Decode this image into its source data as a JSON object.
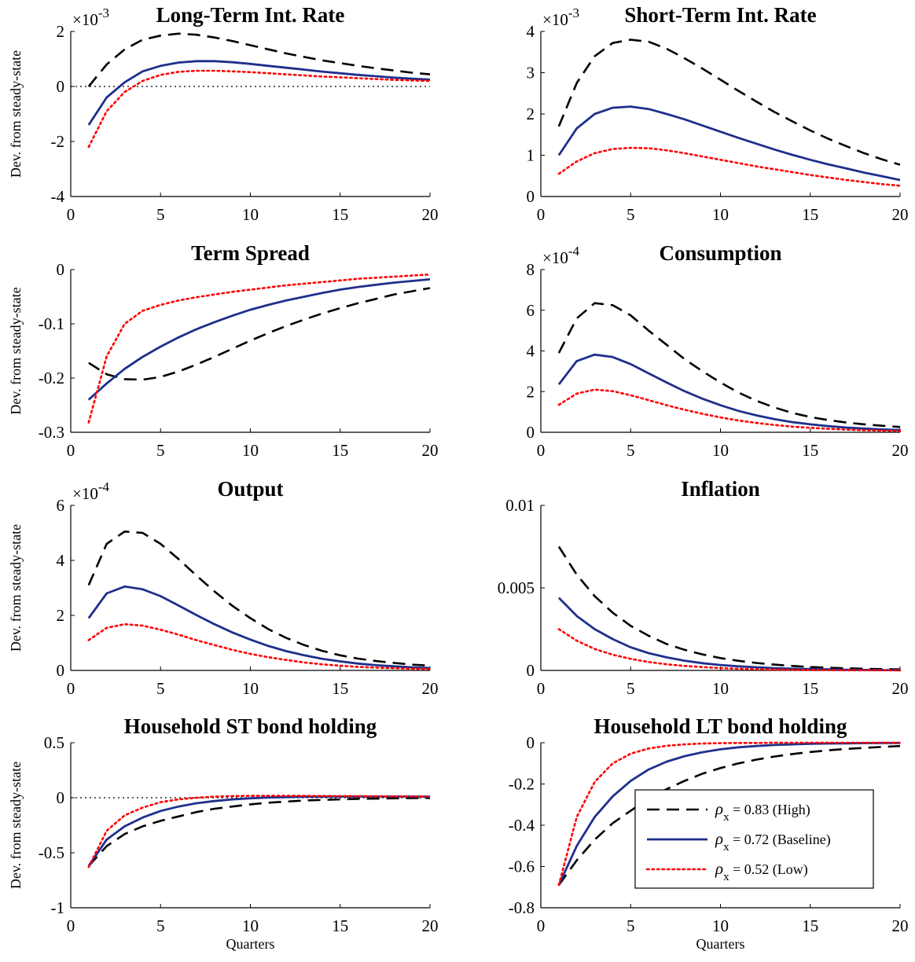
{
  "chart_data": [
    {
      "type": "line",
      "title": "Long-Term Int. Rate",
      "ylabel": "Dev. from steady-state",
      "xlabel": "",
      "multiplier": "×10",
      "exponent": "-3",
      "xlim": [
        0,
        20
      ],
      "ylim": [
        -4,
        2
      ],
      "xticks": [
        0,
        5,
        10,
        15,
        20
      ],
      "yticks": [
        -4,
        -2,
        0,
        2
      ],
      "ytick_labels": [
        "-4",
        "-2",
        "0",
        "2"
      ],
      "zero_line": true,
      "x": [
        1,
        2,
        3,
        4,
        5,
        6,
        7,
        8,
        9,
        10,
        11,
        12,
        13,
        14,
        15,
        16,
        17,
        18,
        19,
        20
      ],
      "series": [
        {
          "style": "high",
          "values": [
            0.0,
            0.8,
            1.35,
            1.7,
            1.85,
            1.92,
            1.88,
            1.78,
            1.65,
            1.5,
            1.35,
            1.2,
            1.07,
            0.95,
            0.85,
            0.75,
            0.66,
            0.58,
            0.5,
            0.44
          ]
        },
        {
          "style": "baseline",
          "values": [
            -1.4,
            -0.4,
            0.15,
            0.55,
            0.75,
            0.87,
            0.92,
            0.92,
            0.88,
            0.82,
            0.75,
            0.68,
            0.61,
            0.54,
            0.48,
            0.42,
            0.37,
            0.32,
            0.28,
            0.25
          ]
        },
        {
          "style": "low",
          "values": [
            -2.2,
            -0.9,
            -0.2,
            0.2,
            0.42,
            0.53,
            0.57,
            0.57,
            0.55,
            0.52,
            0.48,
            0.44,
            0.4,
            0.36,
            0.33,
            0.3,
            0.27,
            0.24,
            0.22,
            0.2
          ]
        }
      ]
    },
    {
      "type": "line",
      "title": "Short-Term Int. Rate",
      "ylabel": "",
      "xlabel": "",
      "multiplier": "×10",
      "exponent": "-3",
      "xlim": [
        0,
        20
      ],
      "ylim": [
        0,
        4
      ],
      "xticks": [
        0,
        5,
        10,
        15,
        20
      ],
      "yticks": [
        0,
        1,
        2,
        3,
        4
      ],
      "ytick_labels": [
        "0",
        "1",
        "2",
        "3",
        "4"
      ],
      "zero_line": false,
      "x": [
        1,
        2,
        3,
        4,
        5,
        6,
        7,
        8,
        9,
        10,
        11,
        12,
        13,
        14,
        15,
        16,
        17,
        18,
        19,
        20
      ],
      "series": [
        {
          "style": "high",
          "values": [
            1.7,
            2.75,
            3.4,
            3.72,
            3.8,
            3.75,
            3.58,
            3.35,
            3.1,
            2.83,
            2.56,
            2.3,
            2.05,
            1.82,
            1.6,
            1.4,
            1.22,
            1.05,
            0.9,
            0.77
          ]
        },
        {
          "style": "baseline",
          "values": [
            1.0,
            1.65,
            2.0,
            2.15,
            2.18,
            2.12,
            2.0,
            1.87,
            1.72,
            1.57,
            1.42,
            1.28,
            1.14,
            1.01,
            0.89,
            0.78,
            0.68,
            0.58,
            0.49,
            0.4
          ]
        },
        {
          "style": "low",
          "values": [
            0.55,
            0.85,
            1.05,
            1.15,
            1.18,
            1.17,
            1.12,
            1.05,
            0.97,
            0.89,
            0.81,
            0.73,
            0.66,
            0.59,
            0.52,
            0.46,
            0.4,
            0.35,
            0.3,
            0.26
          ]
        }
      ]
    },
    {
      "type": "line",
      "title": "Term Spread",
      "ylabel": "Dev. from steady-state",
      "xlabel": "",
      "multiplier": "",
      "exponent": "",
      "xlim": [
        0,
        20
      ],
      "ylim": [
        -0.3,
        0
      ],
      "xticks": [
        0,
        5,
        10,
        15,
        20
      ],
      "yticks": [
        -0.3,
        -0.2,
        -0.1,
        0
      ],
      "ytick_labels": [
        "-0.3",
        "-0.2",
        "-0.1",
        "0"
      ],
      "zero_line": false,
      "x": [
        1,
        2,
        3,
        4,
        5,
        6,
        7,
        8,
        9,
        10,
        11,
        12,
        13,
        14,
        15,
        16,
        17,
        18,
        19,
        20
      ],
      "series": [
        {
          "style": "high",
          "values": [
            -0.172,
            -0.193,
            -0.202,
            -0.203,
            -0.198,
            -0.188,
            -0.175,
            -0.161,
            -0.146,
            -0.131,
            -0.117,
            -0.104,
            -0.092,
            -0.081,
            -0.071,
            -0.062,
            -0.054,
            -0.046,
            -0.04,
            -0.034
          ]
        },
        {
          "style": "baseline",
          "values": [
            -0.24,
            -0.21,
            -0.183,
            -0.161,
            -0.142,
            -0.125,
            -0.11,
            -0.097,
            -0.085,
            -0.074,
            -0.065,
            -0.057,
            -0.05,
            -0.043,
            -0.037,
            -0.032,
            -0.028,
            -0.024,
            -0.021,
            -0.018
          ]
        },
        {
          "style": "low",
          "values": [
            -0.282,
            -0.16,
            -0.1,
            -0.076,
            -0.065,
            -0.057,
            -0.051,
            -0.046,
            -0.041,
            -0.037,
            -0.033,
            -0.029,
            -0.026,
            -0.023,
            -0.02,
            -0.017,
            -0.015,
            -0.013,
            -0.011,
            -0.009
          ]
        }
      ]
    },
    {
      "type": "line",
      "title": "Consumption",
      "ylabel": "",
      "xlabel": "",
      "multiplier": "×10",
      "exponent": "-4",
      "xlim": [
        0,
        20
      ],
      "ylim": [
        0,
        8
      ],
      "xticks": [
        0,
        5,
        10,
        15,
        20
      ],
      "yticks": [
        0,
        2,
        4,
        6,
        8
      ],
      "ytick_labels": [
        "0",
        "2",
        "4",
        "6",
        "8"
      ],
      "zero_line": false,
      "x": [
        1,
        2,
        3,
        4,
        5,
        6,
        7,
        8,
        9,
        10,
        11,
        12,
        13,
        14,
        15,
        16,
        17,
        18,
        19,
        20
      ],
      "series": [
        {
          "style": "high",
          "values": [
            3.9,
            5.6,
            6.35,
            6.25,
            5.75,
            5.0,
            4.3,
            3.6,
            3.0,
            2.45,
            1.95,
            1.55,
            1.22,
            0.95,
            0.75,
            0.6,
            0.48,
            0.39,
            0.32,
            0.26
          ]
        },
        {
          "style": "baseline",
          "values": [
            2.35,
            3.5,
            3.82,
            3.7,
            3.35,
            2.9,
            2.45,
            2.02,
            1.65,
            1.33,
            1.05,
            0.83,
            0.65,
            0.5,
            0.39,
            0.3,
            0.23,
            0.18,
            0.14,
            0.11
          ]
        },
        {
          "style": "low",
          "values": [
            1.35,
            1.9,
            2.1,
            2.02,
            1.82,
            1.58,
            1.33,
            1.11,
            0.91,
            0.73,
            0.58,
            0.46,
            0.36,
            0.28,
            0.22,
            0.17,
            0.13,
            0.1,
            0.08,
            0.06
          ]
        }
      ]
    },
    {
      "type": "line",
      "title": "Output",
      "ylabel": "Dev. from steady-state",
      "xlabel": "",
      "multiplier": "×10",
      "exponent": "-4",
      "xlim": [
        0,
        20
      ],
      "ylim": [
        0,
        6
      ],
      "xticks": [
        0,
        5,
        10,
        15,
        20
      ],
      "yticks": [
        0,
        2,
        4,
        6
      ],
      "ytick_labels": [
        "0",
        "2",
        "4",
        "6"
      ],
      "zero_line": false,
      "x": [
        1,
        2,
        3,
        4,
        5,
        6,
        7,
        8,
        9,
        10,
        11,
        12,
        13,
        14,
        15,
        16,
        17,
        18,
        19,
        20
      ],
      "series": [
        {
          "style": "high",
          "values": [
            3.1,
            4.6,
            5.05,
            5.0,
            4.6,
            4.05,
            3.45,
            2.87,
            2.35,
            1.9,
            1.5,
            1.18,
            0.92,
            0.71,
            0.55,
            0.43,
            0.34,
            0.27,
            0.21,
            0.17
          ]
        },
        {
          "style": "baseline",
          "values": [
            1.9,
            2.8,
            3.05,
            2.95,
            2.7,
            2.36,
            2.01,
            1.68,
            1.38,
            1.12,
            0.89,
            0.7,
            0.55,
            0.42,
            0.33,
            0.25,
            0.19,
            0.15,
            0.11,
            0.09
          ]
        },
        {
          "style": "low",
          "values": [
            1.1,
            1.55,
            1.68,
            1.63,
            1.48,
            1.3,
            1.1,
            0.92,
            0.75,
            0.6,
            0.48,
            0.38,
            0.29,
            0.22,
            0.17,
            0.13,
            0.1,
            0.08,
            0.06,
            0.05
          ]
        }
      ]
    },
    {
      "type": "line",
      "title": "Inflation",
      "ylabel": "",
      "xlabel": "",
      "multiplier": "",
      "exponent": "",
      "xlim": [
        0,
        20
      ],
      "ylim": [
        0,
        0.01
      ],
      "xticks": [
        0,
        5,
        10,
        15,
        20
      ],
      "yticks": [
        0,
        0.005,
        0.01
      ],
      "ytick_labels": [
        "0",
        "0.005",
        "0.01"
      ],
      "zero_line": false,
      "x": [
        1,
        2,
        3,
        4,
        5,
        6,
        7,
        8,
        9,
        10,
        11,
        12,
        13,
        14,
        15,
        16,
        17,
        18,
        19,
        20
      ],
      "series": [
        {
          "style": "high",
          "values": [
            0.0075,
            0.0058,
            0.0045,
            0.0035,
            0.0027,
            0.0021,
            0.0016,
            0.00125,
            0.00097,
            0.00075,
            0.00058,
            0.00045,
            0.00035,
            0.00027,
            0.00021,
            0.00016,
            0.00013,
            0.0001,
            8e-05,
            6e-05
          ]
        },
        {
          "style": "baseline",
          "values": [
            0.0044,
            0.0033,
            0.0025,
            0.0019,
            0.0014,
            0.00105,
            0.00079,
            0.00059,
            0.00044,
            0.00033,
            0.00025,
            0.00019,
            0.00014,
            0.0001,
            8e-05,
            6e-05,
            4e-05,
            3e-05,
            2e-05,
            2e-05
          ]
        },
        {
          "style": "low",
          "values": [
            0.0025,
            0.0018,
            0.0013,
            0.00095,
            0.0007,
            0.00051,
            0.00037,
            0.00027,
            0.0002,
            0.00014,
            0.0001,
            7e-05,
            5e-05,
            4e-05,
            3e-05,
            2e-05,
            1e-05,
            1e-05,
            1e-05,
            0.0
          ]
        }
      ]
    },
    {
      "type": "line",
      "title": "Household ST bond holding",
      "ylabel": "Dev. from steady-state",
      "xlabel": "Quarters",
      "multiplier": "",
      "exponent": "",
      "xlim": [
        0,
        20
      ],
      "ylim": [
        -1,
        0.5
      ],
      "xticks": [
        0,
        5,
        10,
        15,
        20
      ],
      "yticks": [
        -1,
        -0.5,
        0,
        0.5
      ],
      "ytick_labels": [
        "-1",
        "-0.5",
        "0",
        "0.5"
      ],
      "zero_line": true,
      "x": [
        1,
        2,
        3,
        4,
        5,
        6,
        7,
        8,
        9,
        10,
        11,
        12,
        13,
        14,
        15,
        16,
        17,
        18,
        19,
        20
      ],
      "series": [
        {
          "style": "high",
          "values": [
            -0.62,
            -0.44,
            -0.33,
            -0.26,
            -0.21,
            -0.17,
            -0.13,
            -0.1,
            -0.08,
            -0.06,
            -0.045,
            -0.035,
            -0.025,
            -0.02,
            -0.015,
            -0.01,
            -0.008,
            -0.005,
            -0.003,
            -0.002
          ]
        },
        {
          "style": "baseline",
          "values": [
            -0.62,
            -0.38,
            -0.26,
            -0.18,
            -0.12,
            -0.08,
            -0.05,
            -0.03,
            -0.015,
            -0.005,
            0.002,
            0.006,
            0.009,
            0.01,
            0.011,
            0.011,
            0.011,
            0.011,
            0.011,
            0.01
          ]
        },
        {
          "style": "low",
          "values": [
            -0.63,
            -0.3,
            -0.16,
            -0.09,
            -0.04,
            -0.015,
            0.0,
            0.01,
            0.015,
            0.017,
            0.018,
            0.018,
            0.017,
            0.016,
            0.015,
            0.014,
            0.013,
            0.012,
            0.011,
            0.01
          ]
        }
      ]
    },
    {
      "type": "line",
      "title": "Household LT bond holding",
      "ylabel": "",
      "xlabel": "Quarters",
      "multiplier": "",
      "exponent": "",
      "xlim": [
        0,
        20
      ],
      "ylim": [
        -0.8,
        0
      ],
      "xticks": [
        0,
        5,
        10,
        15,
        20
      ],
      "yticks": [
        -0.8,
        -0.6,
        -0.4,
        -0.2,
        0
      ],
      "ytick_labels": [
        "-0.8",
        "-0.6",
        "-0.4",
        "-0.2",
        "0"
      ],
      "zero_line": false,
      "legend_position": "inside-bottom-right",
      "x": [
        1,
        2,
        3,
        4,
        5,
        6,
        7,
        8,
        9,
        10,
        11,
        12,
        13,
        14,
        15,
        16,
        17,
        18,
        19,
        20
      ],
      "series": [
        {
          "style": "high",
          "values": [
            -0.69,
            -0.57,
            -0.47,
            -0.39,
            -0.33,
            -0.27,
            -0.225,
            -0.185,
            -0.15,
            -0.123,
            -0.1,
            -0.082,
            -0.067,
            -0.055,
            -0.045,
            -0.037,
            -0.03,
            -0.025,
            -0.02,
            -0.016
          ]
        },
        {
          "style": "baseline",
          "values": [
            -0.69,
            -0.5,
            -0.36,
            -0.26,
            -0.185,
            -0.13,
            -0.092,
            -0.065,
            -0.046,
            -0.032,
            -0.022,
            -0.016,
            -0.011,
            -0.008,
            -0.005,
            -0.004,
            -0.003,
            -0.002,
            -0.001,
            -0.001
          ]
        },
        {
          "style": "low",
          "values": [
            -0.69,
            -0.36,
            -0.19,
            -0.1,
            -0.053,
            -0.028,
            -0.015,
            -0.008,
            -0.004,
            -0.002,
            -0.001,
            -0.001,
            0.0,
            0.0,
            0.0,
            0.0,
            0.0,
            0.0,
            0.0,
            0.0
          ]
        }
      ]
    }
  ],
  "legend": {
    "entries": [
      {
        "style": "high",
        "symbol": "ρ",
        "subscript": "x",
        "label": " = 0.83 (High)"
      },
      {
        "style": "baseline",
        "symbol": "ρ",
        "subscript": "x",
        "label": " = 0.72 (Baseline)"
      },
      {
        "style": "low",
        "symbol": "ρ",
        "subscript": "x",
        "label": " = 0.52 (Low)"
      }
    ]
  },
  "styles": {
    "high": {
      "color": "#000000",
      "dash": "16,9",
      "width": 2.6
    },
    "baseline": {
      "color": "#1f2f8c",
      "dash": "",
      "width": 2.8
    },
    "low": {
      "color": "#ff0000",
      "dash": "2.5,4",
      "width": 2.6
    },
    "zero_line": {
      "color": "#000000",
      "dash": "2,4",
      "width": 1.2
    }
  }
}
